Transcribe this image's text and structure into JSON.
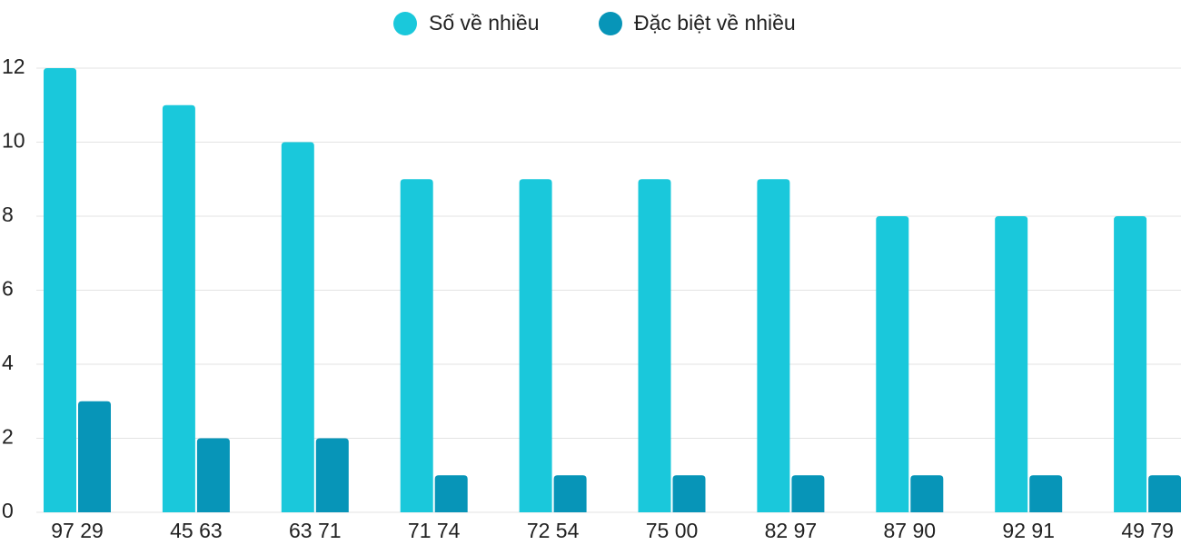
{
  "chart_data": {
    "type": "bar",
    "categories": [
      "97 29",
      "45 63",
      "63 71",
      "71 74",
      "72 54",
      "75 00",
      "82 97",
      "87 90",
      "92 91",
      "49 79"
    ],
    "series": [
      {
        "name": "Số về nhiều",
        "color": "#1ac8db",
        "values": [
          12,
          11,
          10,
          9,
          9,
          9,
          9,
          8,
          8,
          8
        ]
      },
      {
        "name": "Đặc biệt về nhiều",
        "color": "#0795b8",
        "values": [
          3,
          2,
          2,
          1,
          1,
          1,
          1,
          1,
          1,
          1
        ]
      }
    ],
    "ylim": [
      0,
      12
    ],
    "yticks": [
      0,
      2,
      4,
      6,
      8,
      10,
      12
    ],
    "grid": true,
    "legend": "top"
  }
}
